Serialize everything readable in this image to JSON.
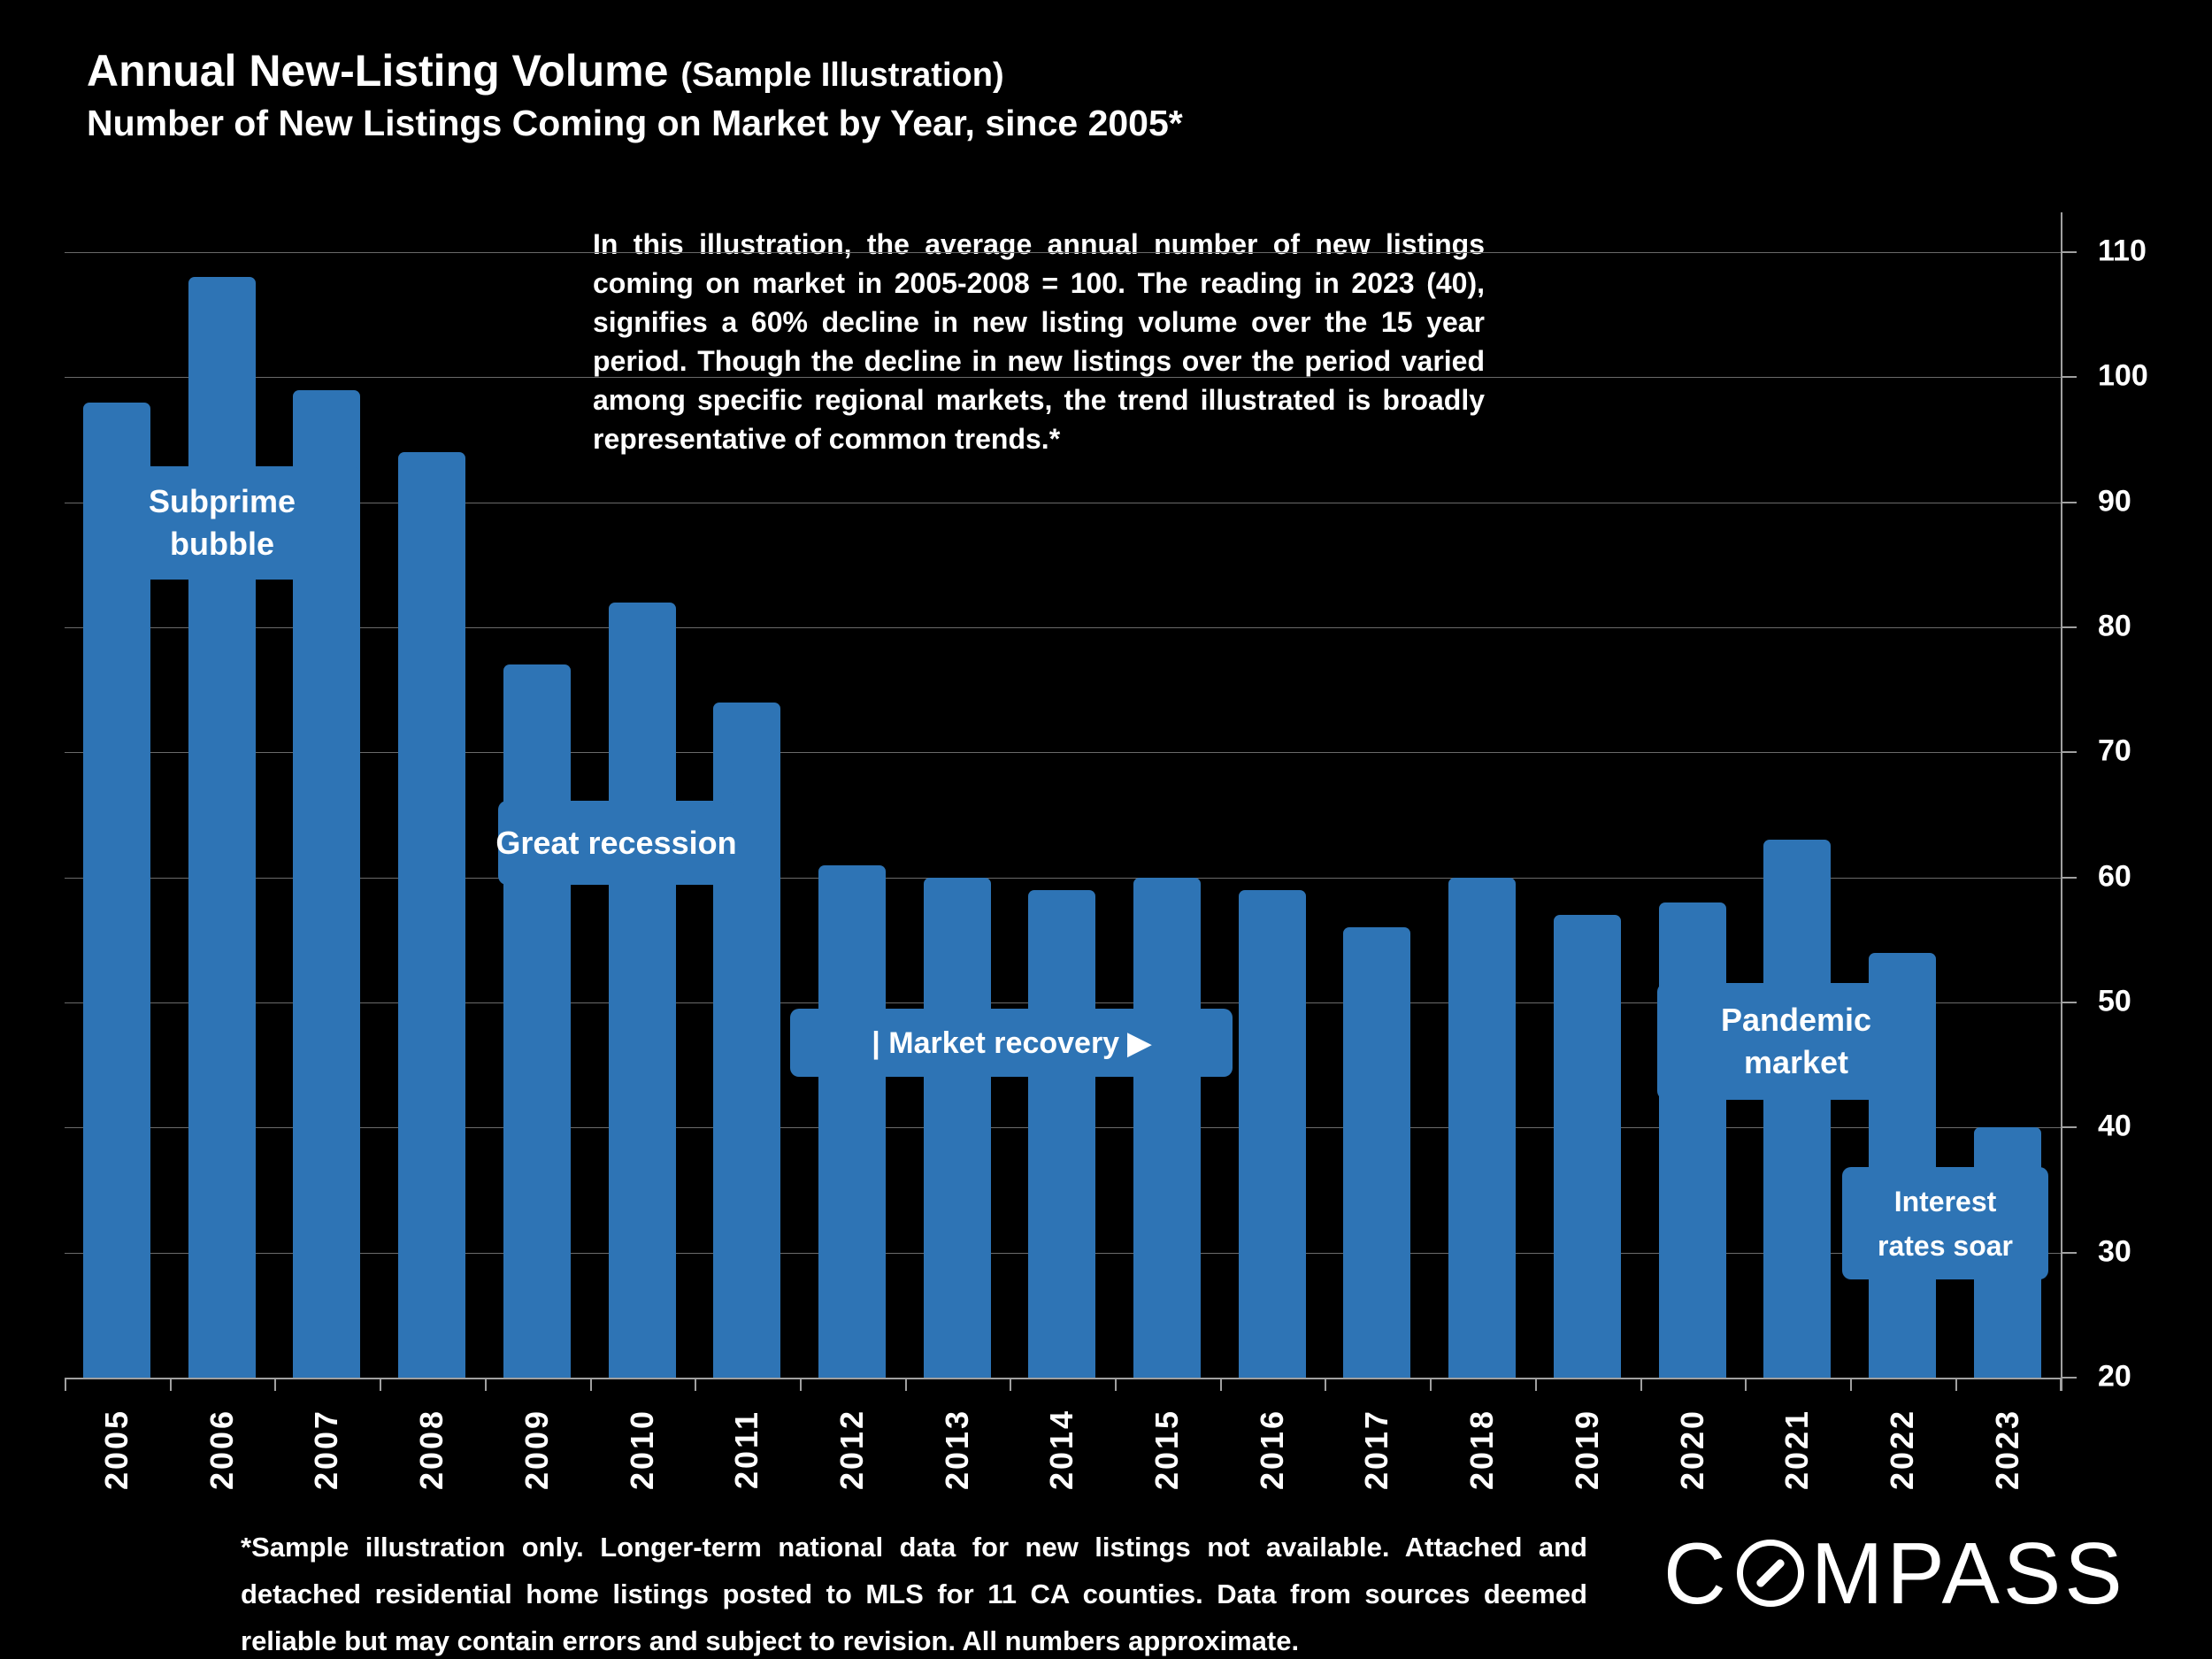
{
  "header": {
    "title": "Annual New-Listing Volume",
    "title_note": "(Sample Illustration)",
    "subtitle": "Number of New Listings Coming on Market by Year, since 2005*"
  },
  "commentary": "In this illustration, the average annual number of new listings coming on market in 2005-2008 = 100.  The reading in 2023 (40), signifies a 60% decline in new listing volume over the 15 year period. Though the decline in new listings over the period varied among specific regional markets, the trend illustrated is broadly representative of common trends.*",
  "chart_data": {
    "type": "bar",
    "title": "Annual New-Listing Volume (Sample Illustration)",
    "subtitle": "Number of New Listings Coming on Market by Year, since 2005*",
    "index_note": "average annual new listings 2005-2008 = 100",
    "categories": [
      "2005",
      "2006",
      "2007",
      "2008",
      "2009",
      "2010",
      "2011",
      "2012",
      "2013",
      "2014",
      "2015",
      "2016",
      "2017",
      "2018",
      "2019",
      "2020",
      "2021",
      "2022",
      "2023"
    ],
    "values": [
      98,
      108,
      99,
      94,
      77,
      82,
      74,
      61,
      60,
      59,
      60,
      59,
      56,
      60,
      57,
      58,
      63,
      54,
      40
    ],
    "ylim": [
      20,
      110
    ],
    "yticks": [
      20,
      30,
      40,
      50,
      60,
      70,
      80,
      90,
      100,
      110
    ],
    "axis_side": "right",
    "grid": true,
    "bar_color": "#2E74B5",
    "background": "#000000",
    "annotations": [
      {
        "id": "subprime",
        "lines": [
          "Subprime",
          "bubble"
        ]
      },
      {
        "id": "recession",
        "lines": [
          "Great recession"
        ]
      },
      {
        "id": "recovery",
        "lines": [
          "| Market recovery ▶"
        ]
      },
      {
        "id": "pandemic",
        "lines": [
          "Pandemic",
          "market"
        ]
      },
      {
        "id": "interest",
        "lines": [
          "Interest",
          "rates soar"
        ]
      }
    ]
  },
  "footnote": "*Sample illustration only. Longer-term national data for new listings not available.  Attached and detached residential home listings posted to MLS for 11 CA counties. Data from sources deemed reliable but may contain errors and subject to revision. All numbers approximate.",
  "logo": {
    "text": "COMPASS"
  }
}
